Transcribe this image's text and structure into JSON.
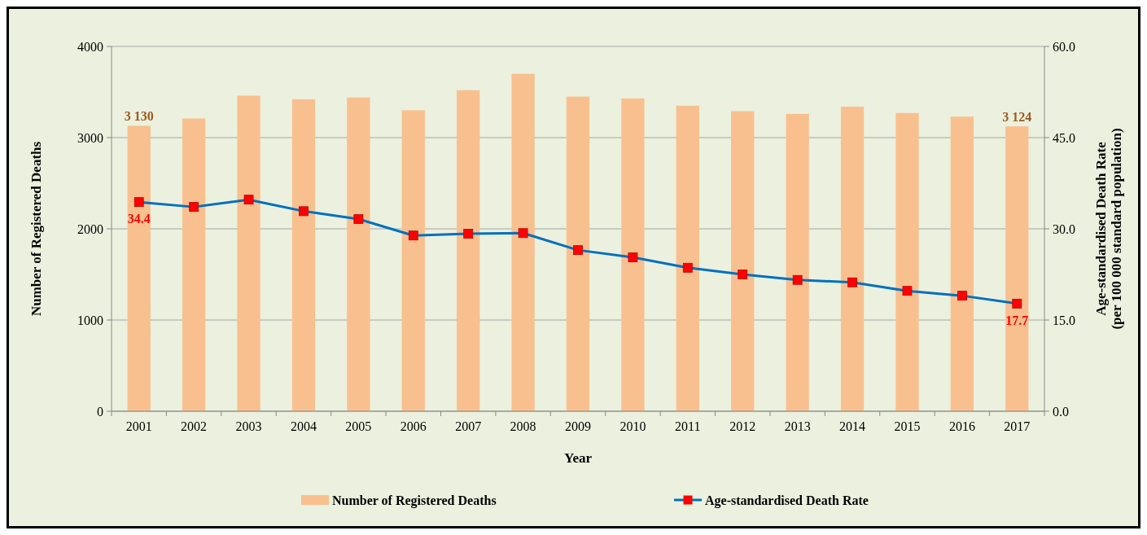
{
  "chart_data": {
    "type": "bar",
    "xlabel": "Year",
    "ylabel": "Number of  Registered Deaths",
    "y2label": "Age-standardised Death Rate\n(per 100 000 standard population)",
    "categories": [
      "2001",
      "2002",
      "2003",
      "2004",
      "2005",
      "2006",
      "2007",
      "2008",
      "2009",
      "2010",
      "2011",
      "2012",
      "2013",
      "2014",
      "2015",
      "2016",
      "2017"
    ],
    "series": [
      {
        "name": "Number of Registered Deaths",
        "color": "#f9c08f",
        "values": [
          3130,
          3210,
          3460,
          3420,
          3440,
          3300,
          3520,
          3700,
          3450,
          3430,
          3350,
          3290,
          3260,
          3340,
          3270,
          3230,
          3124
        ],
        "value_labels": [
          "3 130",
          null,
          null,
          null,
          null,
          null,
          null,
          null,
          null,
          null,
          null,
          null,
          null,
          null,
          null,
          null,
          "3 124"
        ]
      },
      {
        "name": "Age-standardised Death Rate",
        "type": "line",
        "axis": "y2",
        "color": "#0070c0",
        "marker": "square",
        "values": [
          34.4,
          33.6,
          34.8,
          32.9,
          31.6,
          28.9,
          29.2,
          29.3,
          26.5,
          25.3,
          23.6,
          22.5,
          21.6,
          21.2,
          19.8,
          19.0,
          17.7
        ],
        "value_labels": [
          "34.4",
          null,
          null,
          null,
          null,
          null,
          null,
          null,
          null,
          null,
          null,
          null,
          null,
          null,
          null,
          null,
          "17.7"
        ]
      }
    ],
    "ylim": [
      0,
      4000
    ],
    "yticks": [
      0,
      1000,
      2000,
      3000,
      4000
    ],
    "y2lim": [
      0,
      60
    ],
    "y2ticks": [
      {
        "value": 0,
        "label": "0.0"
      },
      {
        "value": 15,
        "label": "15.0"
      },
      {
        "value": 30,
        "label": "30.0"
      },
      {
        "value": 45,
        "label": "45.0"
      },
      {
        "value": 60,
        "label": "60.0"
      }
    ],
    "grid": "y",
    "legend": "bottom"
  }
}
